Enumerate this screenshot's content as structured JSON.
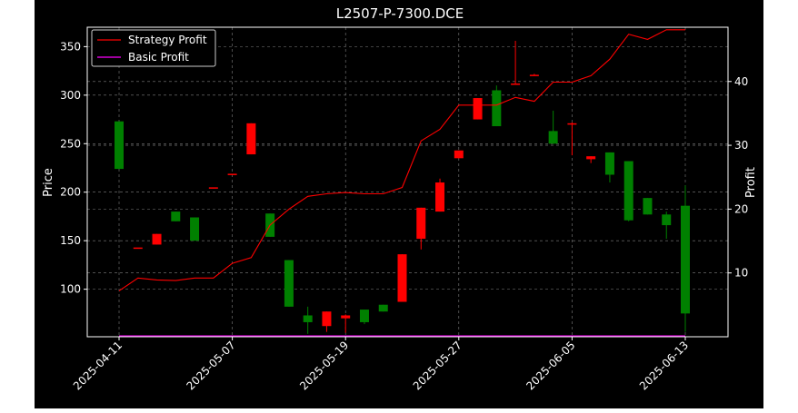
{
  "chart_data": {
    "type": "candlestick+line",
    "title": "L2507-P-7300.DCE",
    "xlabel": "",
    "ylabel": "Price",
    "y2label": "Profit",
    "ylim": [
      51,
      370
    ],
    "y2lim": [
      0,
      48.5
    ],
    "yticks": [
      100,
      150,
      200,
      250,
      300,
      350
    ],
    "y2ticks": [
      10,
      20,
      30,
      40
    ],
    "xtick_labels": [
      "2025-04-11",
      "2025-05-07",
      "2025-05-19",
      "2025-05-27",
      "2025-06-05",
      "2025-06-13"
    ],
    "xtick_index": [
      0,
      6,
      12,
      18,
      24,
      30
    ],
    "grid": true,
    "legend_position": "top-left",
    "legend": [
      "Strategy Profit",
      "Basic Profit"
    ],
    "colors": {
      "up": "#ff0000",
      "down": "#008000",
      "strategy": "#ff0000",
      "basic": "#ff00ff",
      "grid": "#808080",
      "axes": "#ffffff"
    },
    "candles": [
      {
        "o": 273,
        "h": 273,
        "l": 224,
        "c": 224
      },
      {
        "o": 143,
        "h": 143,
        "l": 143,
        "c": 143
      },
      {
        "o": 146,
        "h": 157,
        "l": 146,
        "c": 157
      },
      {
        "o": 180,
        "h": 180,
        "l": 170,
        "c": 170
      },
      {
        "o": 174,
        "h": 174,
        "l": 150,
        "c": 150
      },
      {
        "o": 205,
        "h": 205,
        "l": 205,
        "c": 205
      },
      {
        "o": 219,
        "h": 219,
        "l": 219,
        "c": 219
      },
      {
        "o": 239,
        "h": 271,
        "l": 239,
        "c": 271
      },
      {
        "o": 178,
        "h": 178,
        "l": 154,
        "c": 154
      },
      {
        "o": 130,
        "h": 130,
        "l": 82,
        "c": 82
      },
      {
        "o": 73,
        "h": 82,
        "l": 54,
        "c": 66
      },
      {
        "o": 62,
        "h": 77,
        "l": 56,
        "c": 77
      },
      {
        "o": 70,
        "h": 74,
        "l": 55,
        "c": 73
      },
      {
        "o": 79,
        "h": 79,
        "l": 64,
        "c": 66
      },
      {
        "o": 84,
        "h": 84,
        "l": 77,
        "c": 77
      },
      {
        "o": 87,
        "h": 136,
        "l": 87,
        "c": 136
      },
      {
        "o": 152,
        "h": 184,
        "l": 141,
        "c": 184
      },
      {
        "o": 180,
        "h": 214,
        "l": 180,
        "c": 210
      },
      {
        "o": 235,
        "h": 243,
        "l": 235,
        "c": 243
      },
      {
        "o": 275,
        "h": 297,
        "l": 275,
        "c": 297
      },
      {
        "o": 305,
        "h": 310,
        "l": 268,
        "c": 268
      },
      {
        "o": 311,
        "h": 356,
        "l": 311,
        "c": 312
      },
      {
        "o": 320,
        "h": 322,
        "l": 320,
        "c": 321
      },
      {
        "o": 263,
        "h": 284,
        "l": 250,
        "c": 250
      },
      {
        "o": 270,
        "h": 272,
        "l": 238,
        "c": 271
      },
      {
        "o": 234,
        "h": 237,
        "l": 230,
        "c": 237
      },
      {
        "o": 241,
        "h": 241,
        "l": 210,
        "c": 218
      },
      {
        "o": 232,
        "h": 232,
        "l": 170,
        "c": 171
      },
      {
        "o": 194,
        "h": 194,
        "l": 177,
        "c": 177
      },
      {
        "o": 177,
        "h": 180,
        "l": 152,
        "c": 166
      },
      {
        "o": 186,
        "h": 207,
        "l": 56,
        "c": 75
      }
    ],
    "series": [
      {
        "name": "Strategy Profit",
        "values": [
          7.2,
          9.2,
          8.9,
          8.8,
          9.2,
          9.2,
          11.5,
          12.4,
          17.5,
          20.0,
          22.0,
          22.4,
          22.6,
          22.4,
          22.4,
          23.4,
          30.7,
          32.5,
          36.3,
          36.3,
          36.3,
          37.5,
          36.9,
          39.9,
          39.9,
          40.9,
          43.5,
          47.4,
          46.6,
          48.1,
          48.1
        ]
      },
      {
        "name": "Basic Profit",
        "values": [
          0,
          0,
          0,
          0,
          0,
          0,
          0,
          0,
          0,
          0,
          0,
          0,
          0,
          0,
          0,
          0,
          0,
          0,
          0,
          0,
          0,
          0,
          0,
          0,
          0,
          0,
          0,
          0,
          0,
          0,
          0
        ]
      }
    ]
  }
}
